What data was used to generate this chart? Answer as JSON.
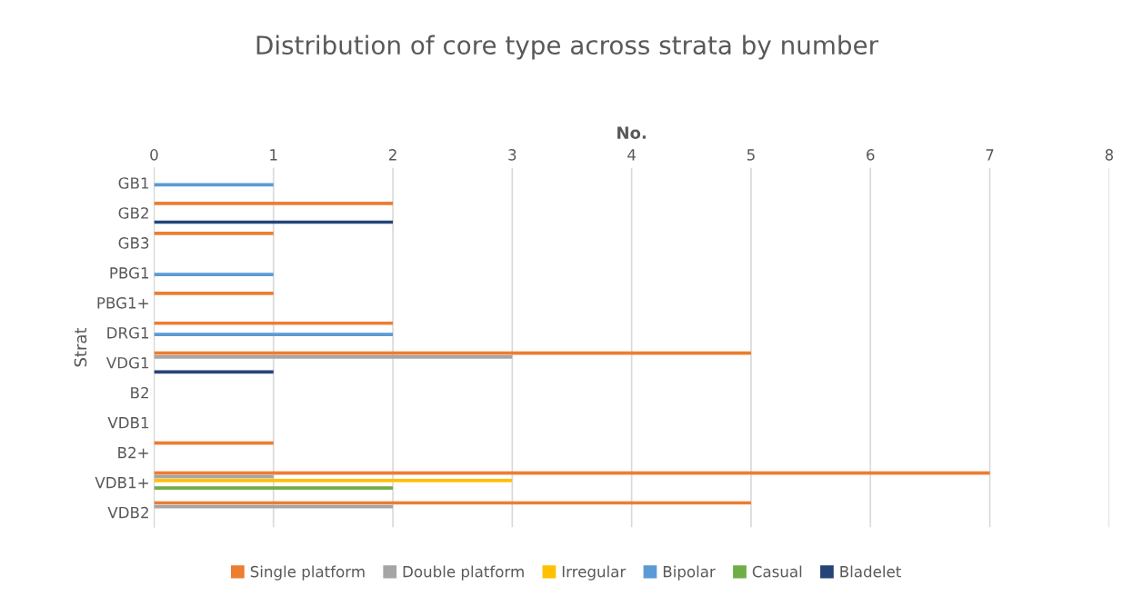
{
  "chart_data": {
    "type": "bar",
    "orientation": "horizontal",
    "title": "Distribution of core type across strata by number",
    "xlabel": "No.",
    "ylabel": "Strat",
    "categories": [
      "GB1",
      "GB2",
      "GB3",
      "PBG1",
      "PBG1+",
      "DRG1",
      "VDG1",
      "B2",
      "VDB1",
      "B2+",
      "VDB1+",
      "VDB2"
    ],
    "series": [
      {
        "name": "Single platform",
        "color": "#ed7d31",
        "values": [
          null,
          2,
          1,
          null,
          1,
          2,
          5,
          null,
          null,
          1,
          7,
          5
        ]
      },
      {
        "name": "Double platform",
        "color": "#a5a5a5",
        "values": [
          null,
          null,
          null,
          null,
          null,
          null,
          3,
          null,
          null,
          null,
          1,
          2
        ]
      },
      {
        "name": "Irregular",
        "color": "#ffc000",
        "values": [
          null,
          null,
          null,
          null,
          null,
          null,
          null,
          null,
          null,
          null,
          3,
          null
        ]
      },
      {
        "name": "Bipolar",
        "color": "#5b9bd5",
        "values": [
          1,
          null,
          null,
          1,
          null,
          2,
          null,
          null,
          null,
          null,
          null,
          null
        ]
      },
      {
        "name": "Casual",
        "color": "#70ad47",
        "values": [
          null,
          null,
          null,
          null,
          null,
          null,
          null,
          null,
          null,
          null,
          2,
          null
        ]
      },
      {
        "name": "Bladelet",
        "color": "#264478",
        "values": [
          null,
          2,
          null,
          null,
          null,
          null,
          1,
          null,
          null,
          null,
          null,
          null
        ]
      }
    ],
    "xlim": [
      0,
      8
    ],
    "xticks": [
      0,
      1,
      2,
      3,
      4,
      5,
      6,
      7,
      8
    ],
    "grid": "x",
    "legend": "bottom"
  }
}
